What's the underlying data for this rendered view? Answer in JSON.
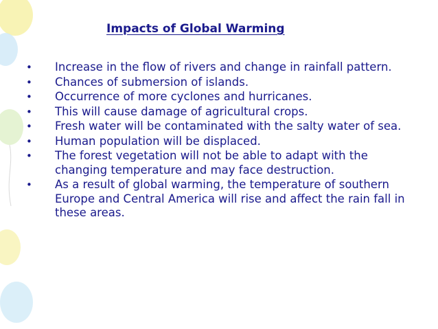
{
  "slide": {
    "title": "Impacts of Global Warming",
    "bullet_symbol": "•",
    "bullets": [
      "Increase in the flow of rivers and change in rainfall pattern.",
      "Chances of submersion of islands.",
      "Occurrence of more cyclones and hurricanes.",
      "This will cause damage of agricultural crops.",
      "Fresh water will be contaminated with the salty water of sea.",
      "Human population will be displaced.",
      "The forest vegetation will not be able to adapt with the changing temperature and may face destruction.",
      "As a result of global warming, the temperature of southern Europe and Central America will rise and affect the rain fall in these areas."
    ]
  },
  "colors": {
    "text": "#1a1a8c",
    "background": "#ffffff",
    "balloon_yellow": "#f7f1a8",
    "balloon_blue": "#cfe9f7",
    "balloon_green": "#dcefc4"
  }
}
